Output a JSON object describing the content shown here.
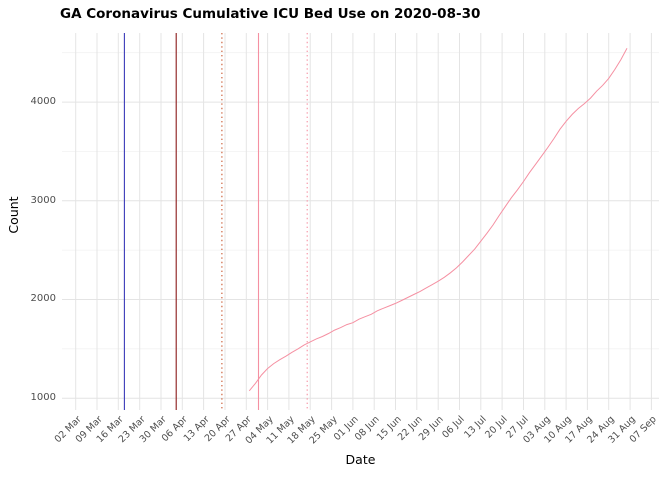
{
  "chart_data": {
    "type": "line",
    "title": "GA Coronavirus Cumulative ICU Bed Use on 2020-08-30",
    "xlabel": "Date",
    "ylabel": "Count",
    "legend": "none",
    "grid": true,
    "x_tick_labels": [
      "02 Mar",
      "09 Mar",
      "16 Mar",
      "23 Mar",
      "30 Mar",
      "06 Apr",
      "13 Apr",
      "20 Apr",
      "27 Apr",
      "04 May",
      "11 May",
      "18 May",
      "25 May",
      "01 Jun",
      "08 Jun",
      "15 Jun",
      "22 Jun",
      "29 Jun",
      "06 Jul",
      "13 Jul",
      "20 Jul",
      "27 Jul",
      "03 Aug",
      "10 Aug",
      "17 Aug",
      "24 Aug",
      "31 Aug",
      "07 Sep"
    ],
    "x_tick_interval_days": 7,
    "y_ticks": [
      1000,
      2000,
      3000,
      4000
    ],
    "y_minor_ticks": [
      1500,
      2500,
      3500,
      4500
    ],
    "ylim": [
      880,
      4700
    ],
    "xlim_days": [
      -4.5,
      191.5
    ],
    "series": [
      {
        "name": "cumulative-icu-bed-use",
        "color": "#f590a2",
        "start_day": 57,
        "step_days": 2,
        "values": [
          1075,
          1150,
          1235,
          1300,
          1350,
          1390,
          1425,
          1465,
          1500,
          1540,
          1570,
          1600,
          1625,
          1655,
          1690,
          1715,
          1745,
          1765,
          1800,
          1825,
          1850,
          1885,
          1910,
          1935,
          1960,
          1990,
          2020,
          2050,
          2080,
          2115,
          2150,
          2185,
          2225,
          2270,
          2320,
          2380,
          2445,
          2510,
          2590,
          2670,
          2755,
          2850,
          2940,
          3030,
          3110,
          3195,
          3285,
          3370,
          3455,
          3540,
          3630,
          3725,
          3805,
          3875,
          3935,
          3985,
          4040,
          4110,
          4170,
          4240,
          4330,
          4430,
          4545
        ]
      }
    ],
    "event_lines": [
      {
        "day": 16,
        "color": "#3a3ab8",
        "style": "solid"
      },
      {
        "day": 33,
        "color": "#8b1a1a",
        "style": "solid"
      },
      {
        "day": 48,
        "color": "#c8552d",
        "style": "dotted"
      },
      {
        "day": 60,
        "color": "#f590a2",
        "style": "solid"
      },
      {
        "day": 76,
        "color": "#f590a2",
        "style": "dotted"
      }
    ],
    "colors": {
      "grid_major": "#e4e4e4",
      "grid_minor": "#f2f2f2",
      "tick_label": "#4d4d4d",
      "background": "#ffffff",
      "series": "#f590a2"
    }
  }
}
